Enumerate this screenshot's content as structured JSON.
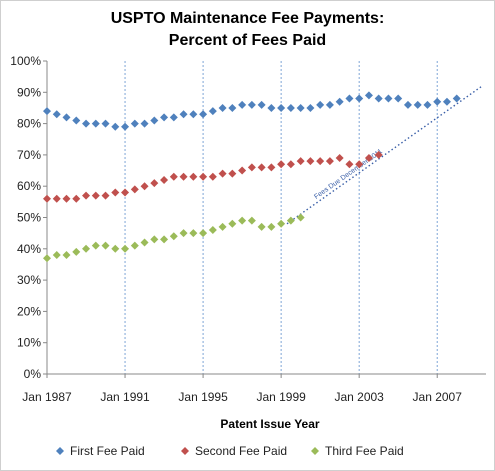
{
  "chart_data": {
    "type": "scatter",
    "title_line1": "USPTO Maintenance Fee Payments:",
    "title_line2": "Percent of Fees Paid",
    "xlabel": "Patent Issue Year",
    "ylabel": "",
    "xlim": [
      1987,
      2009.5
    ],
    "ylim": [
      0,
      100
    ],
    "x_ticks": [
      1987,
      1991,
      1995,
      1999,
      2003,
      2007
    ],
    "x_tick_labels": [
      "Jan 1987",
      "Jan 1991",
      "Jan 1995",
      "Jan 1999",
      "Jan 2003",
      "Jan 2007"
    ],
    "y_ticks": [
      0,
      10,
      20,
      30,
      40,
      50,
      60,
      70,
      80,
      90,
      100
    ],
    "y_tick_labels": [
      "0%",
      "10%",
      "20%",
      "30%",
      "40%",
      "50%",
      "60%",
      "70%",
      "80%",
      "90%",
      "100%"
    ],
    "grid": "vertical",
    "legend_position": "bottom",
    "annotation": {
      "text": "Fees Due December  2011",
      "line": [
        [
          1999.3,
          48
        ],
        [
          2009.3,
          92
        ]
      ]
    },
    "series": [
      {
        "name": "First Fee Paid",
        "color": "#4f81bd",
        "points": [
          [
            1987.0,
            84
          ],
          [
            1987.5,
            83
          ],
          [
            1988.0,
            82
          ],
          [
            1988.5,
            81
          ],
          [
            1989.0,
            80
          ],
          [
            1989.5,
            80
          ],
          [
            1990.0,
            80
          ],
          [
            1990.5,
            79
          ],
          [
            1991.0,
            79
          ],
          [
            1991.5,
            80
          ],
          [
            1992.0,
            80
          ],
          [
            1992.5,
            81
          ],
          [
            1993.0,
            82
          ],
          [
            1993.5,
            82
          ],
          [
            1994.0,
            83
          ],
          [
            1994.5,
            83
          ],
          [
            1995.0,
            83
          ],
          [
            1995.5,
            84
          ],
          [
            1996.0,
            85
          ],
          [
            1996.5,
            85
          ],
          [
            1997.0,
            86
          ],
          [
            1997.5,
            86
          ],
          [
            1998.0,
            86
          ],
          [
            1998.5,
            85
          ],
          [
            1999.0,
            85
          ],
          [
            1999.5,
            85
          ],
          [
            2000.0,
            85
          ],
          [
            2000.5,
            85
          ],
          [
            2001.0,
            86
          ],
          [
            2001.5,
            86
          ],
          [
            2002.0,
            87
          ],
          [
            2002.5,
            88
          ],
          [
            2003.0,
            88
          ],
          [
            2003.5,
            89
          ],
          [
            2004.0,
            88
          ],
          [
            2004.5,
            88
          ],
          [
            2005.0,
            88
          ],
          [
            2005.5,
            86
          ],
          [
            2006.0,
            86
          ],
          [
            2006.5,
            86
          ],
          [
            2007.0,
            87
          ],
          [
            2007.5,
            87
          ],
          [
            2008.0,
            88
          ]
        ]
      },
      {
        "name": "Second Fee Paid",
        "color": "#c0504d",
        "points": [
          [
            1987.0,
            56
          ],
          [
            1987.5,
            56
          ],
          [
            1988.0,
            56
          ],
          [
            1988.5,
            56
          ],
          [
            1989.0,
            57
          ],
          [
            1989.5,
            57
          ],
          [
            1990.0,
            57
          ],
          [
            1990.5,
            58
          ],
          [
            1991.0,
            58
          ],
          [
            1991.5,
            59
          ],
          [
            1992.0,
            60
          ],
          [
            1992.5,
            61
          ],
          [
            1993.0,
            62
          ],
          [
            1993.5,
            63
          ],
          [
            1994.0,
            63
          ],
          [
            1994.5,
            63
          ],
          [
            1995.0,
            63
          ],
          [
            1995.5,
            63
          ],
          [
            1996.0,
            64
          ],
          [
            1996.5,
            64
          ],
          [
            1997.0,
            65
          ],
          [
            1997.5,
            66
          ],
          [
            1998.0,
            66
          ],
          [
            1998.5,
            66
          ],
          [
            1999.0,
            67
          ],
          [
            1999.5,
            67
          ],
          [
            2000.0,
            68
          ],
          [
            2000.5,
            68
          ],
          [
            2001.0,
            68
          ],
          [
            2001.5,
            68
          ],
          [
            2002.0,
            69
          ],
          [
            2002.5,
            67
          ],
          [
            2003.0,
            67
          ],
          [
            2003.5,
            69
          ],
          [
            2004.0,
            70
          ]
        ]
      },
      {
        "name": "Third Fee Paid",
        "color": "#9bbb59",
        "points": [
          [
            1987.0,
            37
          ],
          [
            1987.5,
            38
          ],
          [
            1988.0,
            38
          ],
          [
            1988.5,
            39
          ],
          [
            1989.0,
            40
          ],
          [
            1989.5,
            41
          ],
          [
            1990.0,
            41
          ],
          [
            1990.5,
            40
          ],
          [
            1991.0,
            40
          ],
          [
            1991.5,
            41
          ],
          [
            1992.0,
            42
          ],
          [
            1992.5,
            43
          ],
          [
            1993.0,
            43
          ],
          [
            1993.5,
            44
          ],
          [
            1994.0,
            45
          ],
          [
            1994.5,
            45
          ],
          [
            1995.0,
            45
          ],
          [
            1995.5,
            46
          ],
          [
            1996.0,
            47
          ],
          [
            1996.5,
            48
          ],
          [
            1997.0,
            49
          ],
          [
            1997.5,
            49
          ],
          [
            1998.0,
            47
          ],
          [
            1998.5,
            47
          ],
          [
            1999.0,
            48
          ],
          [
            1999.5,
            49
          ],
          [
            2000.0,
            50
          ]
        ]
      }
    ]
  }
}
